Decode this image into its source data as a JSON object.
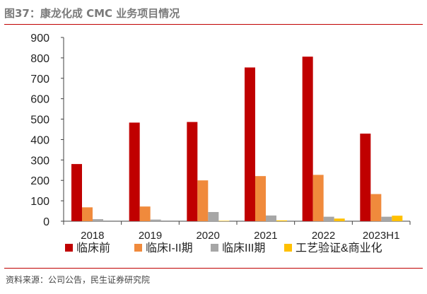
{
  "header": {
    "title": "图37：康龙化成 CMC 业务项目情况"
  },
  "footer": {
    "source": "资料来源：公司公告，民生证券研究院"
  },
  "colors": {
    "rule": "#c00000"
  },
  "chart_data": {
    "type": "bar",
    "title": "",
    "xlabel": "",
    "ylabel": "",
    "categories": [
      "2018",
      "2019",
      "2020",
      "2021",
      "2022",
      "2023H1"
    ],
    "ylim": [
      0,
      900
    ],
    "yticks": [
      0,
      100,
      200,
      300,
      400,
      500,
      600,
      700,
      800,
      900
    ],
    "grid": false,
    "legend_position": "bottom",
    "series": [
      {
        "name": "临床前",
        "color": "#c00000",
        "values": [
          280,
          483,
          486,
          753,
          806,
          429
        ]
      },
      {
        "name": "临床I-II期",
        "color": "#f08a3c",
        "values": [
          68,
          72,
          200,
          221,
          227,
          133
        ]
      },
      {
        "name": "临床III期",
        "color": "#a6a6a6",
        "values": [
          10,
          8,
          45,
          28,
          22,
          22
        ]
      },
      {
        "name": "工艺验证&商业化",
        "color": "#ffc000",
        "values": [
          0,
          0,
          2,
          4,
          13,
          27
        ]
      }
    ]
  }
}
